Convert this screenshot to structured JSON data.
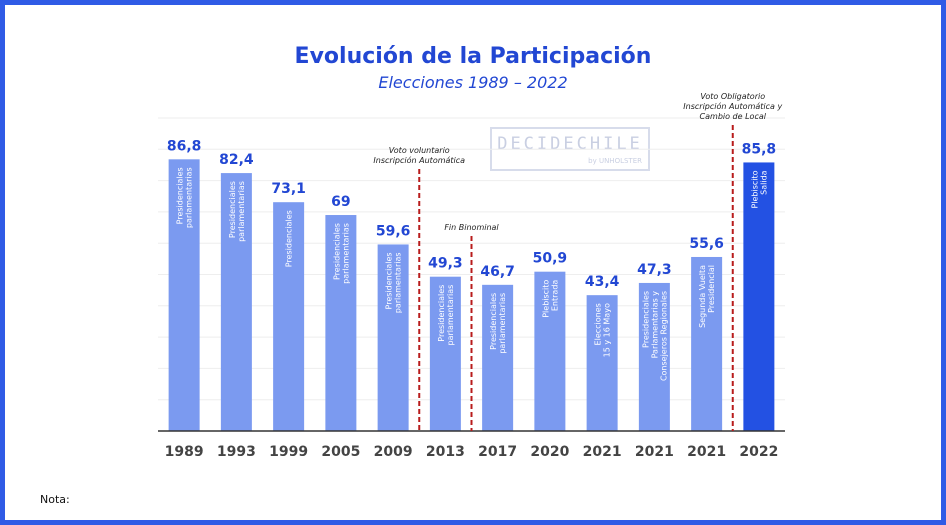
{
  "chart_data": {
    "type": "bar",
    "title": "Evolución de la Participación",
    "subtitle": "Elecciones 1989 – 2022",
    "categories": [
      "1989",
      "1993",
      "1999",
      "2005",
      "2009",
      "2013",
      "2017",
      "2020",
      "2021",
      "2021",
      "2021",
      "2022"
    ],
    "values": [
      86.8,
      82.4,
      73.1,
      69,
      59.6,
      49.3,
      46.7,
      50.9,
      43.4,
      47.3,
      55.6,
      85.8
    ],
    "value_labels": [
      "86,8",
      "82,4",
      "73,1",
      "69",
      "59,6",
      "49,3",
      "46,7",
      "50,9",
      "43,4",
      "47,3",
      "55,6",
      "85,8"
    ],
    "bar_labels": [
      [
        "Presidenciales",
        "parlamentarias"
      ],
      [
        "Presidenciales",
        "parlamentarias"
      ],
      [
        "Presidenciales"
      ],
      [
        "Presidenciales",
        "parlamentarias"
      ],
      [
        "Presidenciales",
        "parlamentarias"
      ],
      [
        "Presidenciales",
        "parlamentarias"
      ],
      [
        "Presidenciales",
        "parlamentarias"
      ],
      [
        "Plebiscito",
        "Entrada"
      ],
      [
        "Elecciones",
        "15 y 16 Mayo"
      ],
      [
        "Presidenciales",
        "Parlamentarias y",
        "Consejeros Regionales"
      ],
      [
        "Segunda Vuelta",
        "Presidencial"
      ],
      [
        "Plebiscito",
        "Salida"
      ]
    ],
    "highlight_index": 11,
    "ylim": [
      0,
      100
    ],
    "grid": true,
    "legend": "none",
    "colors": {
      "bar": "#7b9af0",
      "highlight_bar": "#2351e3",
      "value_label": "#2247d3",
      "axis_label": "#444444",
      "annotation_line": "#b81c1c"
    },
    "annotations": [
      {
        "after_index": 4,
        "lines": [
          "Voto voluntario",
          "Inscripción Automática"
        ]
      },
      {
        "after_index": 5,
        "lines": [
          "Fin Binominal"
        ]
      },
      {
        "after_index": 10,
        "lines": [
          "Voto Obligatorio",
          "Inscripción Automática y",
          "Cambio de Local"
        ]
      }
    ]
  },
  "watermark": {
    "main": "DECIDECHILE",
    "sub": "by UNHOLSTER"
  },
  "note": "Nota:"
}
